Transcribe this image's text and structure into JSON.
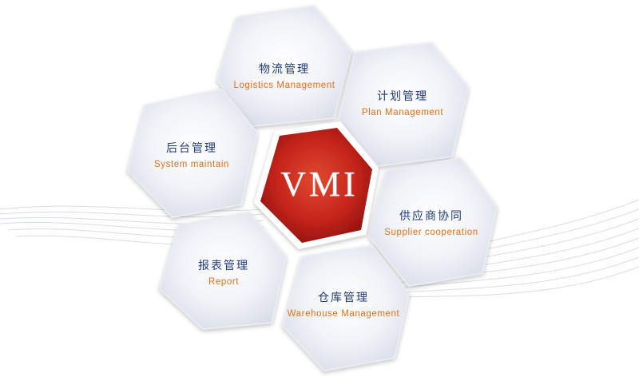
{
  "center": {
    "label": "VMI",
    "color": "#c5241b"
  },
  "modules": [
    {
      "id": "logistics",
      "zh": "物流管理",
      "en": "Logistics Management"
    },
    {
      "id": "plan",
      "zh": "计划管理",
      "en": "Plan Management"
    },
    {
      "id": "supplier",
      "zh": "供应商协同",
      "en": "Supplier cooperation"
    },
    {
      "id": "warehouse",
      "zh": "仓库管理",
      "en": "Warehouse Management"
    },
    {
      "id": "report",
      "zh": "报表管理",
      "en": "Report"
    },
    {
      "id": "backend",
      "zh": "后台管理",
      "en": "System maintain"
    }
  ],
  "colors": {
    "title": "#1f3a78",
    "subtitle": "#e0701a",
    "hex_fill": "#eef0f6"
  }
}
